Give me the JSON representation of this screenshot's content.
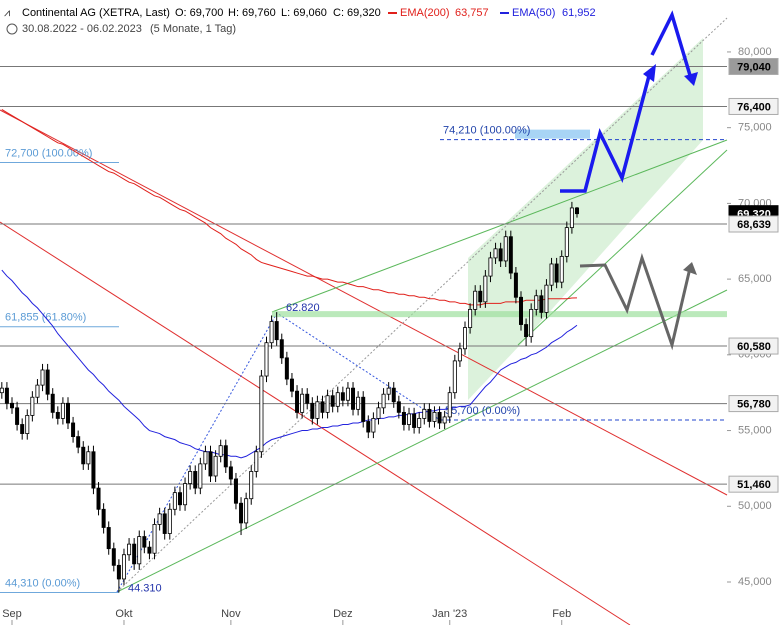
{
  "chart_data": {
    "type": "candlestick",
    "title": "Continental AG (XETRA, Last)",
    "ohlc_labels": [
      "O: 69,700",
      "H: 69,760",
      "L: 69,060",
      "C: 69,320"
    ],
    "date_range": "30.08.2022 - 06.02.2023",
    "period": "(5 Monate, 1 Tag)",
    "categories": [
      null,
      null,
      "Sep",
      null,
      null,
      null,
      null,
      null,
      null,
      null,
      null,
      null,
      null,
      null,
      null,
      null,
      null,
      null,
      null,
      null,
      null,
      null,
      null,
      null,
      "Okt",
      null,
      null,
      null,
      null,
      null,
      null,
      null,
      null,
      null,
      null,
      null,
      null,
      null,
      null,
      null,
      null,
      null,
      null,
      null,
      null,
      "Nov",
      null,
      null,
      null,
      null,
      null,
      null,
      null,
      null,
      null,
      null,
      null,
      null,
      null,
      null,
      null,
      null,
      null,
      null,
      null,
      null,
      null,
      "Dez",
      null,
      null,
      null,
      null,
      null,
      null,
      null,
      null,
      null,
      null,
      null,
      null,
      null,
      null,
      null,
      null,
      null,
      null,
      null,
      null,
      "Jan '23",
      null,
      null,
      null,
      null,
      null,
      null,
      null,
      null,
      null,
      null,
      null,
      null,
      null,
      null,
      null,
      null,
      null,
      null,
      null,
      null,
      null,
      "Feb",
      null,
      null,
      null
    ],
    "open": [
      57.5,
      57.8,
      56.8,
      56.5,
      55.4,
      54.8,
      56.0,
      57.2,
      58.0,
      59.0,
      57.4,
      56.2,
      55.8,
      56.8,
      55.5,
      54.6,
      53.9,
      52.8,
      53.6,
      51.2,
      49.8,
      48.6,
      47.2,
      46.1,
      45.2,
      46.8,
      47.5,
      46.2,
      48.0,
      47.3,
      46.9,
      48.8,
      49.5,
      48.2,
      49.8,
      50.9,
      50.1,
      51.5,
      52.3,
      51.2,
      52.8,
      53.6,
      52.0,
      53.3,
      54.0,
      52.6,
      51.8,
      50.2,
      48.9,
      50.5,
      52.3,
      53.6,
      58.6,
      60.8,
      62.2,
      61.0,
      59.8,
      58.4,
      57.6,
      56.2,
      57.4,
      56.8,
      55.8,
      56.9,
      56.2,
      57.3,
      56.6,
      57.5,
      57.0,
      57.8,
      56.4,
      57.2,
      55.6,
      54.9,
      55.8,
      56.5,
      57.4,
      57.8,
      56.9,
      56.2,
      55.4,
      56.1,
      55.2,
      55.8,
      56.4,
      55.6,
      56.2,
      55.5,
      55.9,
      57.5,
      59.6,
      60.4,
      61.8,
      63.0,
      64.2,
      63.5,
      65.2,
      66.4,
      67.0,
      66.2,
      67.8,
      65.4,
      63.8,
      62.0,
      61.2,
      63.0,
      63.9,
      62.8,
      64.6,
      66.0,
      64.8,
      66.5,
      68.4,
      69.7
    ],
    "high": [
      58.2,
      58.2,
      57.2,
      56.9,
      55.8,
      56.4,
      57.6,
      58.4,
      59.4,
      59.4,
      57.8,
      56.6,
      57.2,
      57.2,
      55.9,
      55.0,
      54.3,
      54.0,
      54.0,
      51.6,
      50.2,
      49.0,
      47.6,
      46.5,
      47.2,
      47.9,
      47.9,
      48.4,
      48.4,
      47.7,
      49.2,
      49.9,
      49.9,
      50.2,
      51.3,
      51.3,
      51.9,
      52.7,
      52.7,
      53.2,
      54.0,
      54.0,
      53.7,
      54.4,
      54.4,
      53.0,
      52.2,
      50.6,
      50.9,
      52.7,
      54.0,
      59.0,
      61.2,
      62.6,
      62.82,
      61.4,
      60.2,
      58.8,
      58.0,
      57.8,
      57.8,
      57.2,
      57.3,
      57.3,
      57.7,
      57.7,
      57.9,
      57.9,
      58.2,
      58.2,
      57.6,
      57.6,
      56.0,
      56.2,
      56.9,
      57.8,
      58.2,
      58.2,
      57.3,
      56.6,
      56.5,
      56.5,
      56.2,
      56.8,
      56.8,
      56.6,
      56.6,
      56.3,
      57.9,
      60.0,
      60.8,
      62.2,
      63.4,
      64.6,
      64.6,
      65.6,
      66.8,
      67.4,
      67.4,
      68.2,
      68.2,
      65.8,
      64.2,
      62.4,
      63.4,
      64.3,
      64.3,
      65.0,
      66.4,
      66.4,
      66.9,
      68.8,
      70.1,
      69.76
    ],
    "low": [
      57.1,
      56.4,
      56.1,
      55.0,
      54.4,
      54.4,
      55.6,
      56.8,
      57.6,
      57.0,
      55.8,
      55.4,
      55.4,
      55.1,
      54.2,
      53.5,
      52.4,
      52.4,
      50.8,
      49.4,
      48.2,
      46.8,
      45.7,
      44.31,
      44.8,
      46.4,
      45.8,
      45.8,
      46.9,
      46.5,
      46.5,
      48.4,
      47.8,
      47.8,
      49.4,
      49.7,
      49.7,
      51.1,
      50.8,
      50.8,
      52.4,
      51.6,
      51.6,
      52.9,
      52.2,
      51.4,
      49.8,
      48.1,
      48.5,
      50.1,
      51.9,
      53.2,
      58.2,
      60.4,
      60.6,
      59.4,
      58.0,
      57.2,
      55.8,
      55.8,
      56.4,
      55.4,
      55.4,
      55.8,
      55.8,
      56.2,
      56.2,
      56.6,
      56.6,
      56.0,
      56.0,
      55.2,
      54.5,
      54.5,
      55.4,
      56.1,
      57.0,
      56.5,
      55.8,
      55.0,
      55.0,
      54.8,
      54.8,
      55.4,
      55.2,
      55.2,
      55.1,
      55.1,
      55.5,
      57.1,
      59.2,
      60.0,
      61.4,
      62.6,
      63.1,
      63.1,
      64.8,
      66.0,
      65.8,
      65.8,
      65.0,
      63.4,
      61.6,
      60.58,
      60.8,
      62.6,
      62.4,
      62.4,
      64.2,
      64.4,
      64.4,
      66.1,
      68.0,
      69.06
    ],
    "close": [
      57.8,
      56.8,
      56.5,
      55.4,
      54.8,
      56.0,
      57.2,
      58.0,
      59.0,
      57.4,
      56.2,
      55.8,
      56.8,
      55.5,
      54.6,
      53.9,
      52.8,
      53.6,
      51.2,
      49.8,
      48.6,
      47.2,
      46.1,
      45.2,
      46.8,
      47.5,
      46.2,
      48.0,
      47.3,
      46.9,
      48.8,
      49.5,
      48.2,
      49.8,
      50.9,
      50.1,
      51.5,
      52.3,
      51.2,
      52.8,
      53.6,
      52.0,
      53.3,
      54.0,
      52.6,
      51.8,
      50.2,
      48.9,
      50.5,
      52.3,
      53.6,
      58.6,
      60.8,
      62.2,
      61.0,
      59.8,
      58.4,
      57.6,
      56.2,
      57.4,
      56.8,
      55.8,
      56.9,
      56.2,
      57.3,
      56.6,
      57.5,
      57.0,
      57.8,
      56.4,
      57.2,
      55.6,
      54.9,
      55.8,
      56.5,
      57.4,
      57.8,
      56.9,
      56.2,
      55.4,
      56.1,
      55.2,
      55.8,
      56.4,
      55.6,
      56.2,
      55.5,
      55.9,
      57.5,
      59.6,
      60.4,
      61.8,
      63.0,
      64.2,
      63.5,
      65.2,
      66.4,
      67.0,
      66.2,
      67.8,
      65.4,
      63.8,
      62.0,
      61.2,
      63.0,
      63.9,
      62.8,
      64.6,
      66.0,
      64.8,
      66.5,
      68.4,
      69.7,
      69.32
    ],
    "series": [
      {
        "name": "EMA(200)",
        "color": "#e0201b",
        "legend_value": "63,757",
        "values": [
          76.2,
          76.0,
          75.8,
          75.6,
          75.4,
          75.2,
          75.0,
          74.8,
          74.6,
          74.4,
          74.2,
          74.0,
          73.9,
          73.7,
          73.5,
          73.3,
          73.1,
          72.9,
          72.7,
          72.5,
          72.3,
          72.1,
          72.0,
          71.8,
          71.6,
          71.4,
          71.3,
          71.1,
          70.9,
          70.7,
          70.5,
          70.4,
          70.2,
          70.0,
          69.8,
          69.6,
          69.5,
          69.3,
          69.1,
          68.9,
          68.7,
          68.4,
          68.2,
          68.0,
          67.7,
          67.5,
          67.3,
          67.0,
          66.8,
          66.6,
          66.3,
          66.1,
          66.0,
          65.9,
          65.8,
          65.7,
          65.6,
          65.5,
          65.4,
          65.3,
          65.2,
          65.2,
          65.1,
          65.0,
          65.0,
          64.9,
          64.8,
          64.8,
          64.7,
          64.6,
          64.5,
          64.5,
          64.4,
          64.3,
          64.3,
          64.2,
          64.1,
          64.1,
          64.0,
          64.0,
          63.9,
          63.9,
          63.8,
          63.8,
          63.7,
          63.7,
          63.6,
          63.6,
          63.5,
          63.5,
          63.4,
          63.4,
          63.3,
          63.3,
          63.3,
          63.4,
          63.4,
          63.4,
          63.4,
          63.5,
          63.5,
          63.5,
          63.5,
          63.6,
          63.6,
          63.6,
          63.6,
          63.7,
          63.7,
          63.7,
          63.7,
          63.7,
          63.75,
          63.757
        ]
      },
      {
        "name": "EMA(50)",
        "color": "#2222dd",
        "legend_value": "61,952",
        "values": [
          65.6,
          65.2,
          64.9,
          64.5,
          64.1,
          63.8,
          63.4,
          63.1,
          62.7,
          62.3,
          61.9,
          61.4,
          61.0,
          60.6,
          60.2,
          59.8,
          59.4,
          59.0,
          58.7,
          58.3,
          58.0,
          57.6,
          57.3,
          57.0,
          56.6,
          56.3,
          56.0,
          55.7,
          55.3,
          55.0,
          54.9,
          54.8,
          54.6,
          54.5,
          54.4,
          54.2,
          54.1,
          54.0,
          53.8,
          53.7,
          53.6,
          53.6,
          53.5,
          53.4,
          53.4,
          53.3,
          53.3,
          53.2,
          53.3,
          53.5,
          53.7,
          53.9,
          54.2,
          54.4,
          54.5,
          54.6,
          54.7,
          54.8,
          54.9,
          55.0,
          55.0,
          55.1,
          55.1,
          55.2,
          55.2,
          55.3,
          55.3,
          55.4,
          55.4,
          55.5,
          55.5,
          55.6,
          55.7,
          55.7,
          55.8,
          55.8,
          55.9,
          55.9,
          56.0,
          56.0,
          56.1,
          56.1,
          56.2,
          56.2,
          56.3,
          56.3,
          56.4,
          56.4,
          56.5,
          56.5,
          56.6,
          56.6,
          56.7,
          57.1,
          57.5,
          57.9,
          58.2,
          58.6,
          59.0,
          59.2,
          59.4,
          59.5,
          59.7,
          59.8,
          60.0,
          60.1,
          60.3,
          60.5,
          60.8,
          61.0,
          61.2,
          61.5,
          61.7,
          61.952
        ]
      }
    ],
    "ylim": [
      42.16,
      83.43
    ],
    "yticks": [
      {
        "value": 45,
        "label": "45,000"
      },
      {
        "value": 50,
        "label": "50,000"
      },
      {
        "value": 55,
        "label": "55,000"
      },
      {
        "value": 60,
        "label": "60,000"
      },
      {
        "value": 65,
        "label": "65,000"
      },
      {
        "value": 70,
        "label": "70,000"
      },
      {
        "value": 75,
        "label": "75,000"
      },
      {
        "value": 80,
        "label": "80,000"
      }
    ],
    "levels": [
      {
        "value": 79.04,
        "label": "79,040"
      },
      {
        "value": 76.4,
        "label": "76,400"
      },
      {
        "value": 69.32,
        "label": "69,320"
      },
      {
        "value": 68.639,
        "label": "68,639"
      },
      {
        "value": 60.58,
        "label": "60,580"
      },
      {
        "value": 56.78,
        "label": "56,780"
      },
      {
        "value": 51.46,
        "label": "51,460"
      }
    ],
    "fib_labels": [
      {
        "value": 74.21,
        "label": "74,210 (100.00%)"
      },
      {
        "value": 72.7,
        "label": "72,700 (100.00%)"
      },
      {
        "value": 61.855,
        "label": "61,855 (61.80%)"
      },
      {
        "value": 55.7,
        "label": "55,700 (0.00%)"
      },
      {
        "value": 44.31,
        "label": "44,310 (0.00%)"
      }
    ],
    "point_labels": [
      {
        "value": 62.82,
        "label": "62.820"
      },
      {
        "value": 44.31,
        "label": "44.310"
      }
    ]
  }
}
